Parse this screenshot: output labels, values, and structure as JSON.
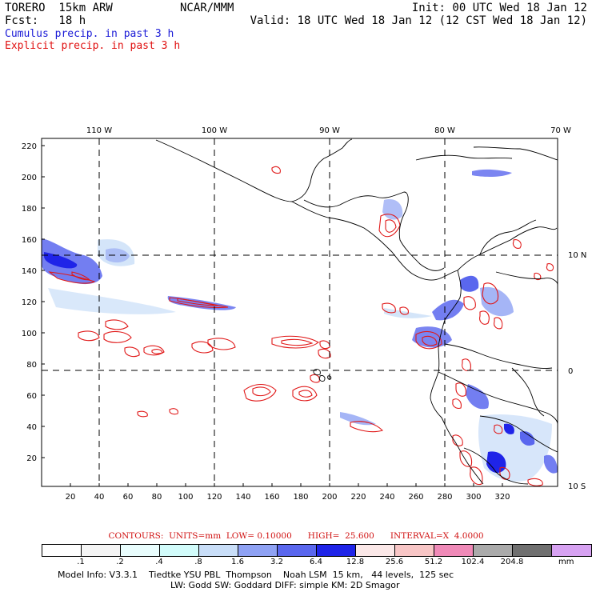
{
  "header": {
    "model": "TORERO  15km ARW",
    "org": "NCAR/MMM",
    "init": "Init: 00 UTC Wed 18 Jan 12",
    "fcst": "Fcst:   18 h",
    "valid": "Valid: 18 UTC Wed 18 Jan 12 (12 CST Wed 18 Jan 12)",
    "legend_cumulus": "Cumulus precip. in past 3 h",
    "legend_explicit": "Explicit precip. in past 3 h"
  },
  "map": {
    "lon_labels": [
      "110 W",
      "100 W",
      "90 W",
      "80 W",
      "70 W"
    ],
    "lat_labels": [
      "10 N",
      "0",
      "10 S"
    ],
    "y_ticks": [
      "220",
      "200",
      "180",
      "160",
      "140",
      "120",
      "100",
      "80",
      "60",
      "40",
      "20"
    ],
    "x_ticks": [
      "20",
      "40",
      "60",
      "80",
      "100",
      "120",
      "140",
      "160",
      "180",
      "200",
      "220",
      "240",
      "260",
      "280",
      "300",
      "320"
    ],
    "colors": {
      "cumulus": "#3a46e6",
      "explicit": "#e01818",
      "coast": "#000000"
    }
  },
  "contours": {
    "text": "CONTOURS:  UNITS=mm  LOW= 0.10000      HIGH=  25.600      INTERVAL=X  4.0000"
  },
  "colorbar": {
    "colors": [
      "#ffffff",
      "#f4f4f4",
      "#e9fdfd",
      "#d2fcfb",
      "#c9def8",
      "#8fa2f4",
      "#5a67ee",
      "#1f24e8",
      "#fbe8e8",
      "#f8c6c6",
      "#f08ab8",
      "#aaaaaa",
      "#707070",
      "#d7a2f2"
    ],
    "labels": [
      ".1",
      ".2",
      ".4",
      ".8",
      "1.6",
      "3.2",
      "6.4",
      "12.8",
      "25.6",
      "51.2",
      "102.4",
      "204.8"
    ],
    "unit": "mm"
  },
  "footer": {
    "line1": "Model Info: V3.3.1    Tiedtke YSU PBL  Thompson    Noah LSM  15 km,   44 levels,  125 sec",
    "line2": "LW: Godd SW: Goddard DIFF: simple KM: 2D Smagor"
  }
}
